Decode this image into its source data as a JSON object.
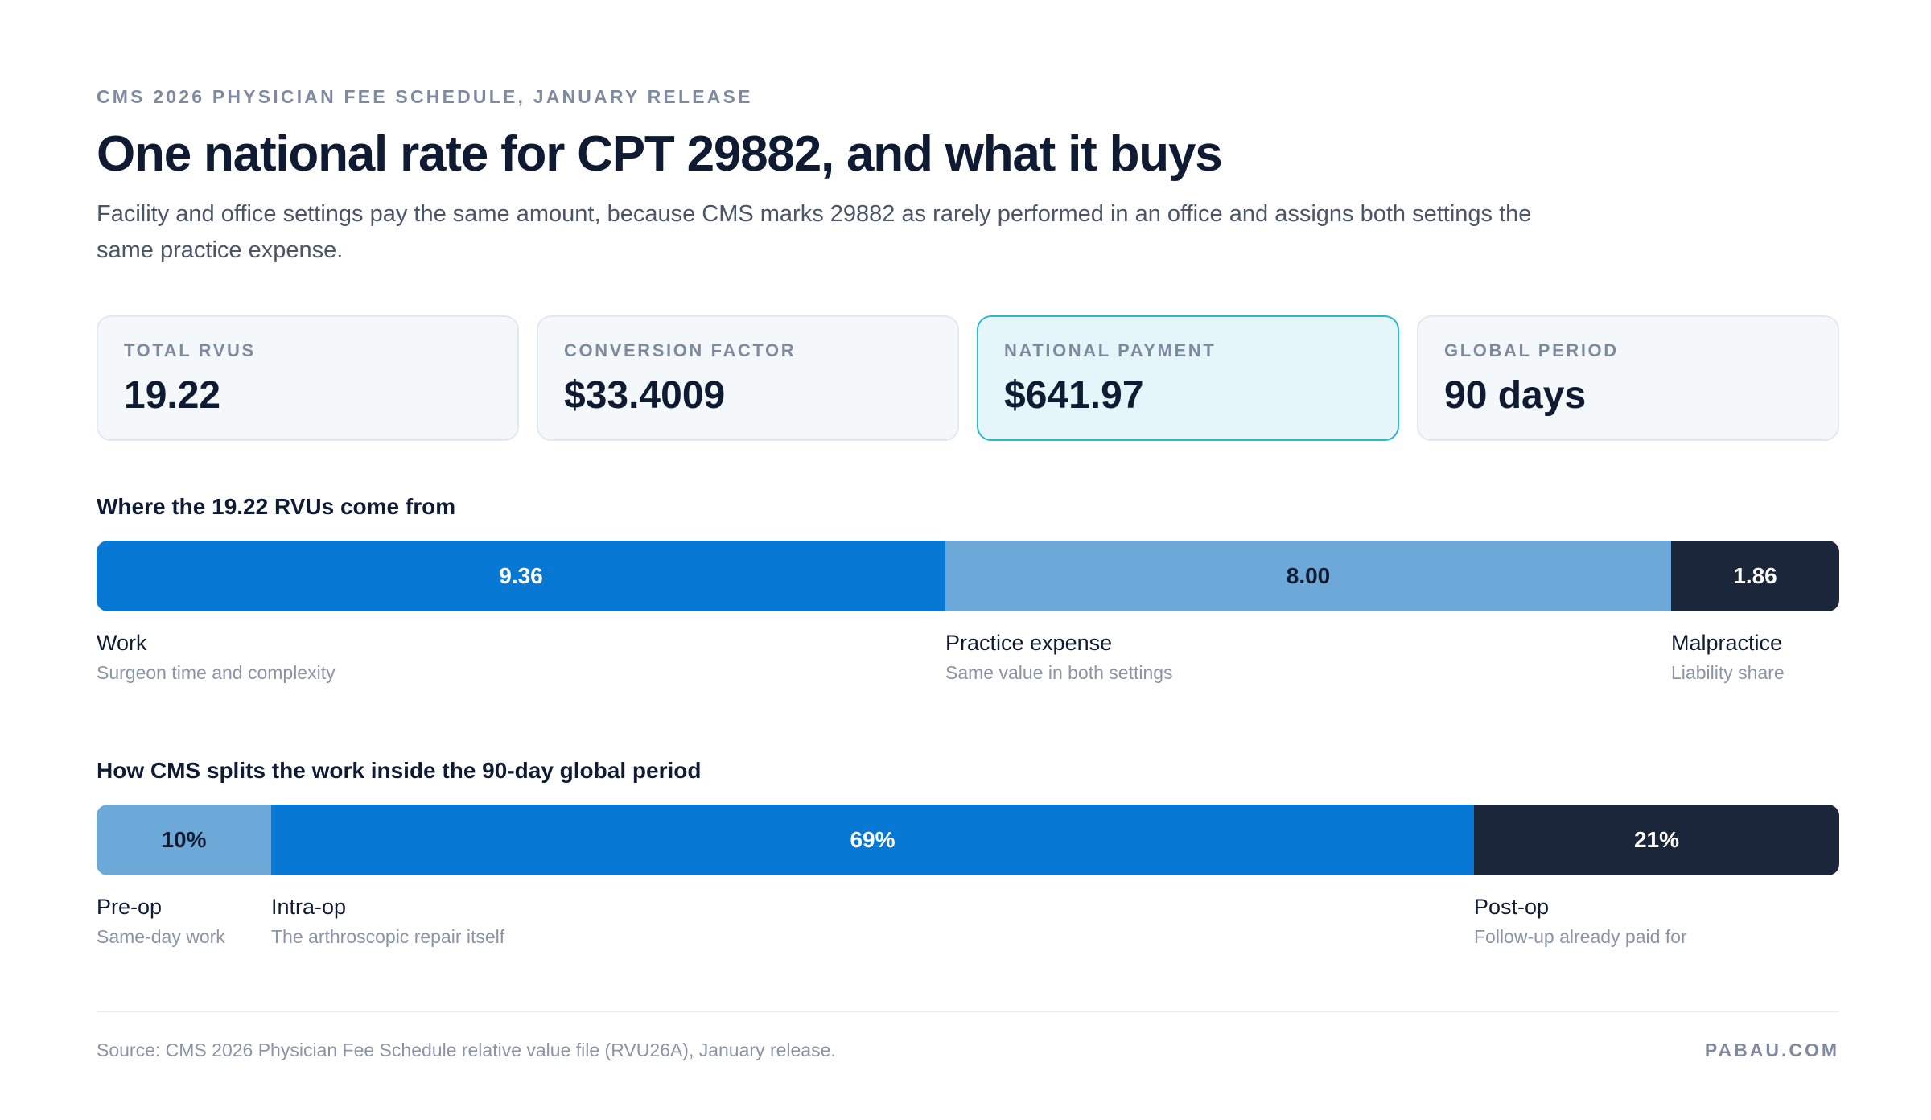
{
  "header": {
    "eyebrow": "CMS 2026 PHYSICIAN FEE SCHEDULE, JANUARY RELEASE",
    "title": "One national rate for CPT 29882, and what it buys",
    "subtitle": "Facility and office settings pay the same amount, because CMS marks 29882 as rarely performed in an office and assigns both settings the same practice expense."
  },
  "kpis": [
    {
      "label": "TOTAL RVUS",
      "value": "19.22"
    },
    {
      "label": "CONVERSION FACTOR",
      "value": "$33.4009"
    },
    {
      "label": "NATIONAL PAYMENT",
      "value": "$641.97"
    },
    {
      "label": "GLOBAL PERIOD",
      "value": "90 days"
    }
  ],
  "colors": {
    "primary_blue": "#0779d4",
    "light_blue": "#6ca8d8",
    "navy": "#1c263a",
    "highlight_bg": "#e4f6fa",
    "highlight_border": "#2fb6cf"
  },
  "chart_data": [
    {
      "type": "bar",
      "orientation": "horizontal-stacked",
      "title": "Where the 19.22 RVUs come from",
      "total": 19.22,
      "segments": [
        {
          "name": "Work",
          "value": 9.36,
          "label": "9.36",
          "description": "Surgeon time and complexity",
          "color": "#0779d4",
          "text_color": "#ffffff"
        },
        {
          "name": "Practice expense",
          "value": 8.0,
          "label": "8.00",
          "description": "Same value in both settings",
          "color": "#6ca8d8",
          "text_color": "#0f1b33"
        },
        {
          "name": "Malpractice",
          "value": 1.86,
          "label": "1.86",
          "description": "Liability share",
          "color": "#1c263a",
          "text_color": "#ffffff"
        }
      ]
    },
    {
      "type": "bar",
      "orientation": "horizontal-stacked",
      "title": "How CMS splits the work inside the 90-day global period",
      "total": 100,
      "segments": [
        {
          "name": "Pre-op",
          "value": 10,
          "label": "10%",
          "description": "Same-day work",
          "color": "#6ca8d8",
          "text_color": "#0f1b33"
        },
        {
          "name": "Intra-op",
          "value": 69,
          "label": "69%",
          "description": "The arthroscopic repair itself",
          "color": "#0779d4",
          "text_color": "#ffffff"
        },
        {
          "name": "Post-op",
          "value": 21,
          "label": "21%",
          "description": "Follow-up already paid for",
          "color": "#1c263a",
          "text_color": "#ffffff"
        }
      ]
    }
  ],
  "footer": {
    "source": "Source: CMS 2026 Physician Fee Schedule relative value file (RVU26A), January release.",
    "brand": "PABAU.COM"
  }
}
